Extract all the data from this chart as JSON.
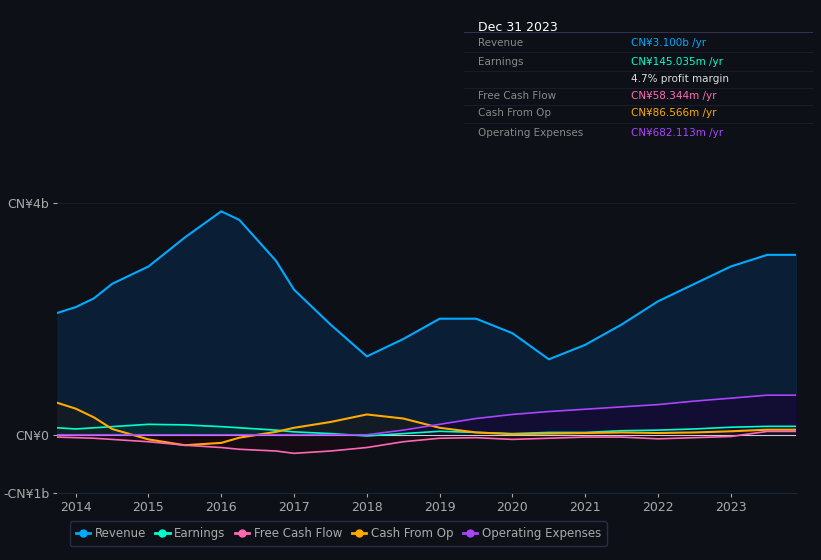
{
  "background_color": "#0d1117",
  "plot_bg_color": "#0d1117",
  "years": [
    2013.75,
    2014.0,
    2014.25,
    2014.5,
    2015.0,
    2015.5,
    2016.0,
    2016.25,
    2016.75,
    2017.0,
    2017.5,
    2018.0,
    2018.5,
    2019.0,
    2019.5,
    2020.0,
    2020.5,
    2021.0,
    2021.5,
    2022.0,
    2022.5,
    2023.0,
    2023.5,
    2023.9
  ],
  "revenue": [
    2.1,
    2.2,
    2.35,
    2.6,
    2.9,
    3.4,
    3.85,
    3.7,
    3.0,
    2.5,
    1.9,
    1.35,
    1.65,
    2.0,
    2.0,
    1.75,
    1.3,
    1.55,
    1.9,
    2.3,
    2.6,
    2.9,
    3.1,
    3.1
  ],
  "earnings": [
    0.12,
    0.1,
    0.12,
    0.14,
    0.18,
    0.17,
    0.14,
    0.12,
    0.08,
    0.05,
    0.02,
    -0.02,
    0.02,
    0.06,
    0.04,
    0.02,
    0.04,
    0.04,
    0.07,
    0.08,
    0.1,
    0.13,
    0.145,
    0.145
  ],
  "free_cash_flow": [
    -0.04,
    -0.05,
    -0.06,
    -0.08,
    -0.12,
    -0.18,
    -0.22,
    -0.25,
    -0.28,
    -0.32,
    -0.28,
    -0.22,
    -0.12,
    -0.06,
    -0.05,
    -0.08,
    -0.06,
    -0.04,
    -0.04,
    -0.07,
    -0.05,
    -0.03,
    0.058,
    0.058
  ],
  "cash_from_op": [
    0.55,
    0.45,
    0.3,
    0.1,
    -0.08,
    -0.18,
    -0.14,
    -0.05,
    0.05,
    0.12,
    0.22,
    0.35,
    0.28,
    0.12,
    0.04,
    0.01,
    0.02,
    0.03,
    0.04,
    0.03,
    0.04,
    0.06,
    0.087,
    0.087
  ],
  "operating_expenses": [
    0.0,
    0.0,
    0.0,
    0.0,
    0.0,
    0.0,
    0.0,
    0.0,
    0.0,
    0.0,
    0.0,
    0.0,
    0.08,
    0.18,
    0.28,
    0.35,
    0.4,
    0.44,
    0.48,
    0.52,
    0.58,
    0.63,
    0.682,
    0.682
  ],
  "revenue_color": "#00aaff",
  "earnings_color": "#00ffcc",
  "free_cash_flow_color": "#ff69b4",
  "cash_from_op_color": "#ffaa00",
  "operating_expenses_color": "#aa44ff",
  "ylim_min": -1.0,
  "ylim_max": 4.5,
  "yticks": [
    -1.0,
    0.0,
    4.0
  ],
  "ytick_labels": [
    "-CN¥1b",
    "CN¥0",
    "CN¥4b"
  ],
  "xticks": [
    2014,
    2015,
    2016,
    2017,
    2018,
    2019,
    2020,
    2021,
    2022,
    2023
  ],
  "grid_color": "#1a2535",
  "zero_line_color": "#cccccc",
  "text_color": "#aaaaaa",
  "tooltip_bg": "#000000",
  "tooltip_title": "Dec 31 2023",
  "tooltip_items": [
    {
      "label": "Revenue",
      "value": "CN¥3.100b /yr",
      "color": "#00aaff"
    },
    {
      "label": "Earnings",
      "value": "CN¥145.035m /yr",
      "color": "#00ffcc"
    },
    {
      "label": "",
      "value": "4.7% profit margin",
      "color": "#dddddd"
    },
    {
      "label": "Free Cash Flow",
      "value": "CN¥58.344m /yr",
      "color": "#ff69b4"
    },
    {
      "label": "Cash From Op",
      "value": "CN¥86.566m /yr",
      "color": "#ffaa00"
    },
    {
      "label": "Operating Expenses",
      "value": "CN¥682.113m /yr",
      "color": "#aa44ff"
    }
  ],
  "legend_items": [
    {
      "label": "Revenue",
      "color": "#00aaff"
    },
    {
      "label": "Earnings",
      "color": "#00ffcc"
    },
    {
      "label": "Free Cash Flow",
      "color": "#ff69b4"
    },
    {
      "label": "Cash From Op",
      "color": "#ffaa00"
    },
    {
      "label": "Operating Expenses",
      "color": "#aa44ff"
    }
  ]
}
